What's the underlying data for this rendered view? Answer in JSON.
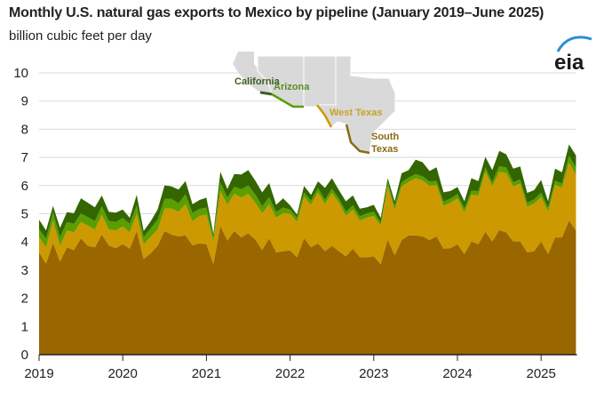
{
  "title": "Monthly U.S. natural gas exports to Mexico by pipeline (January 2019–June 2025)",
  "subtitle": "billion cubic feet per day",
  "logo": "eia",
  "chart_data": {
    "type": "area",
    "stacked": true,
    "x_start": "2019-01",
    "x_end": "2025-06",
    "frequency": "monthly",
    "ylim": [
      0,
      10
    ],
    "yticks": [
      "0",
      "1",
      "2",
      "3",
      "4",
      "5",
      "6",
      "7",
      "8",
      "9",
      "10"
    ],
    "xticks": [
      "2019",
      "2020",
      "2021",
      "2022",
      "2023",
      "2024",
      "2025"
    ],
    "grid": true,
    "legend": "inset map labels, top-center",
    "series": [
      {
        "name": "South Texas",
        "color": "#996600",
        "values": [
          3.63,
          3.23,
          3.97,
          3.31,
          3.81,
          3.71,
          4.13,
          3.86,
          3.81,
          4.26,
          3.88,
          3.78,
          3.92,
          3.76,
          4.39,
          3.39,
          3.6,
          3.86,
          4.39,
          4.26,
          4.2,
          4.23,
          3.88,
          3.95,
          3.92,
          3.21,
          4.57,
          4.05,
          4.39,
          4.16,
          4.31,
          4.09,
          3.71,
          4.13,
          3.63,
          3.67,
          3.7,
          3.46,
          4.13,
          3.81,
          3.95,
          3.67,
          3.86,
          3.67,
          3.49,
          3.76,
          3.46,
          3.46,
          3.49,
          3.21,
          4.09,
          3.53,
          4.07,
          4.23,
          4.23,
          4.2,
          4.07,
          4.2,
          3.76,
          3.78,
          3.92,
          3.57,
          4.02,
          3.92,
          4.36,
          4.02,
          4.42,
          4.34,
          4.02,
          4.02,
          3.63,
          3.67,
          4.02,
          3.57,
          4.16,
          4.16,
          4.76,
          4.41
        ]
      },
      {
        "name": "West Texas",
        "color": "#CC9900",
        "values": [
          0.53,
          0.58,
          0.79,
          0.55,
          0.6,
          0.63,
          0.58,
          0.72,
          0.63,
          0.71,
          0.56,
          0.63,
          0.63,
          0.58,
          0.61,
          0.53,
          0.58,
          0.58,
          0.79,
          0.92,
          0.87,
          1.11,
          0.85,
          0.97,
          1.05,
          0.81,
          1.24,
          1.27,
          1.32,
          1.41,
          1.4,
          1.3,
          1.31,
          1.21,
          1.23,
          1.35,
          1.3,
          1.25,
          1.47,
          1.51,
          1.81,
          1.67,
          1.88,
          1.72,
          1.43,
          1.39,
          1.3,
          1.4,
          1.43,
          1.37,
          1.88,
          1.6,
          1.9,
          1.9,
          2.03,
          1.98,
          1.92,
          1.82,
          1.52,
          1.61,
          1.63,
          1.47,
          1.65,
          1.73,
          2.13,
          1.95,
          2.07,
          2.1,
          1.95,
          2.05,
          1.62,
          1.69,
          1.58,
          1.5,
          1.86,
          1.76,
          2.05,
          1.98
        ]
      },
      {
        "name": "Arizona",
        "color": "#5A9E00",
        "values": [
          0.3,
          0.3,
          0.3,
          0.3,
          0.3,
          0.3,
          0.3,
          0.3,
          0.3,
          0.3,
          0.3,
          0.3,
          0.3,
          0.3,
          0.3,
          0.25,
          0.3,
          0.35,
          0.35,
          0.35,
          0.3,
          0.35,
          0.3,
          0.25,
          0.25,
          0.15,
          0.3,
          0.25,
          0.25,
          0.3,
          0.3,
          0.3,
          0.25,
          0.25,
          0.2,
          0.2,
          0.15,
          0.15,
          0.15,
          0.15,
          0.15,
          0.15,
          0.15,
          0.15,
          0.15,
          0.15,
          0.15,
          0.15,
          0.15,
          0.1,
          0.15,
          0.15,
          0.15,
          0.15,
          0.15,
          0.15,
          0.15,
          0.15,
          0.15,
          0.15,
          0.15,
          0.15,
          0.15,
          0.15,
          0.15,
          0.15,
          0.2,
          0.2,
          0.15,
          0.15,
          0.15,
          0.15,
          0.15,
          0.15,
          0.15,
          0.15,
          0.25,
          0.25
        ]
      },
      {
        "name": "California",
        "color": "#336600",
        "values": [
          0.33,
          0.3,
          0.22,
          0.34,
          0.35,
          0.38,
          0.54,
          0.51,
          0.49,
          0.38,
          0.33,
          0.33,
          0.3,
          0.22,
          0.37,
          0.22,
          0.25,
          0.36,
          0.48,
          0.44,
          0.49,
          0.47,
          0.31,
          0.32,
          0.35,
          0.11,
          0.38,
          0.31,
          0.45,
          0.52,
          0.54,
          0.49,
          0.49,
          0.5,
          0.26,
          0.33,
          0.15,
          0.11,
          0.24,
          0.2,
          0.24,
          0.43,
          0.37,
          0.3,
          0.37,
          0.35,
          0.27,
          0.22,
          0.25,
          0.18,
          0.14,
          0.16,
          0.32,
          0.27,
          0.51,
          0.5,
          0.38,
          0.48,
          0.33,
          0.27,
          0.25,
          0.25,
          0.44,
          0.36,
          0.38,
          0.43,
          0.54,
          0.47,
          0.48,
          0.46,
          0.34,
          0.33,
          0.45,
          0.22,
          0.43,
          0.4,
          0.4,
          0.43
        ]
      }
    ],
    "map_labels": {
      "california": "California",
      "arizona": "Arizona",
      "west_texas": "West Texas",
      "south_texas_1": "South",
      "south_texas_2": "Texas"
    },
    "map_label_colors": {
      "california": "#3D5E1E",
      "arizona": "#5B8C2A",
      "west_texas": "#C9A227",
      "south_texas": "#8A6A10"
    }
  }
}
